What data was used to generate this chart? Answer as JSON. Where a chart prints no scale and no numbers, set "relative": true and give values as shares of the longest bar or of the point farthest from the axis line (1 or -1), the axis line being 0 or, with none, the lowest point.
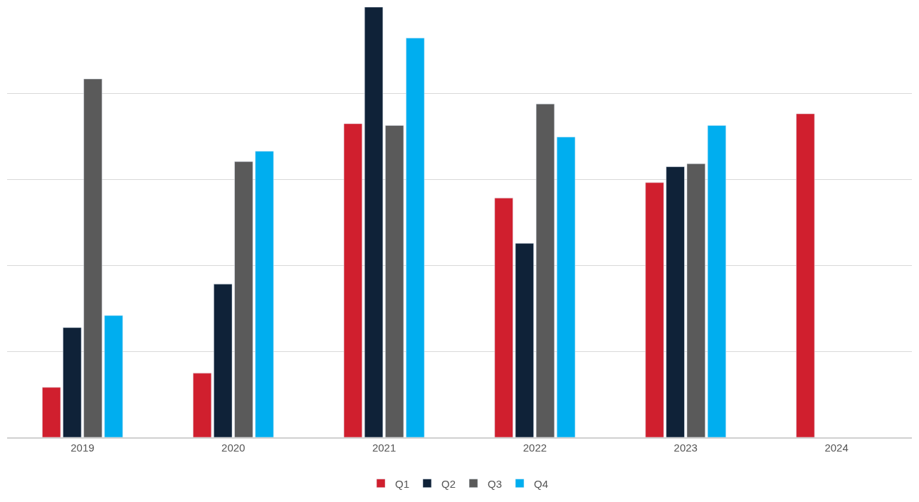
{
  "chart_data": {
    "type": "bar",
    "relative": true,
    "categories": [
      "2019",
      "2020",
      "2021",
      "2022",
      "2023",
      "2024"
    ],
    "series": [
      {
        "name": "Q1",
        "color": "#d01f2e",
        "values": [
          0.116,
          0.149,
          0.729,
          0.556,
          0.592,
          0.752
        ]
      },
      {
        "name": "Q2",
        "color": "#0f2238",
        "values": [
          0.255,
          0.356,
          1,
          0.451,
          0.629,
          null
        ]
      },
      {
        "name": "Q3",
        "color": "#5a5a5a",
        "values": [
          0.833,
          0.641,
          0.725,
          0.775,
          0.636,
          null
        ]
      },
      {
        "name": "Q4",
        "color": "#00aeef",
        "values": [
          0.283,
          0.665,
          0.928,
          0.698,
          0.725,
          null
        ]
      }
    ],
    "grid": "y",
    "legend": "bottom"
  }
}
